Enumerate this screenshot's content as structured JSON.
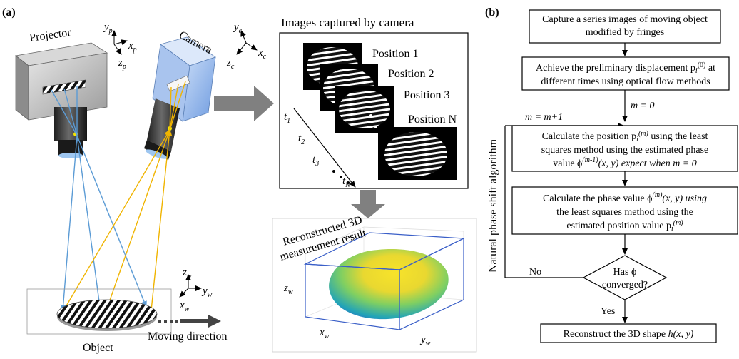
{
  "panel_a": {
    "label": "(a)",
    "projector_label": "Projector",
    "camera_label": "Camera",
    "projector_axes": {
      "x": "x",
      "x_sub": "p",
      "y": "y",
      "y_sub": "p",
      "z": "z",
      "z_sub": "p"
    },
    "camera_axes": {
      "x": "x",
      "x_sub": "c",
      "y": "y",
      "y_sub": "c",
      "z": "z",
      "z_sub": "c"
    },
    "world_axes": {
      "x": "x",
      "x_sub": "w",
      "y": "y",
      "y_sub": "w",
      "z": "z",
      "z_sub": "w"
    },
    "object_label": "Object",
    "moving_direction_label": "Moving direction",
    "images_title": "Images captured by camera",
    "positions": [
      "Position 1",
      "Position 2",
      "Position 3",
      "Position N"
    ],
    "times": [
      {
        "t": "t",
        "sub": "1"
      },
      {
        "t": "t",
        "sub": "2"
      },
      {
        "t": "t",
        "sub": "3"
      },
      {
        "t": "t",
        "sub": "N"
      }
    ],
    "result_title_line1": "Reconstructed 3D",
    "result_title_line2": "measurement result",
    "result_axes": {
      "z": "z",
      "z_sub": "w",
      "x": "x",
      "x_sub": "w",
      "y": "y",
      "y_sub": "w"
    }
  },
  "panel_b": {
    "label": "(b)",
    "side_label": "Natural phase shift algorithm",
    "step1": "Capture a series images of moving object modified by fringes",
    "step2_line1": "Achieve the preliminary displacement p",
    "step2_sub": "i",
    "step2_sup": "(0)",
    "step2_tail": " at",
    "step2_line2": "different times using optical flow methods",
    "init_label": "m = 0",
    "loop_label": "m = m+1",
    "step3_line1": "Calculate the position p",
    "step3_sub": "i",
    "step3_sup": "(m)",
    "step3_tail": " using the least",
    "step3_line2": "squares method using the estimated phase",
    "step3_line3_pre": "value ϕ",
    "step3_line3_sup": "(m-1)",
    "step3_line3_mid": "(x, y) expect when ",
    "step3_line3_end": "m = 0",
    "step4_line1_pre": "Calculate the phase value ϕ",
    "step4_line1_sup": "(m)",
    "step4_line1_tail": "(x, y) using",
    "step4_line2": "the least squares method using the",
    "step4_line3_pre": "estimated position value p",
    "step4_line3_sub": "i",
    "step4_line3_sup": "(m)",
    "decision_line1": "Has ϕ",
    "decision_line2": "converged?",
    "no_label": "No",
    "yes_label": "Yes",
    "final_pre": "Reconstruct the 3D shape ",
    "final_math": "h(x, y)"
  }
}
